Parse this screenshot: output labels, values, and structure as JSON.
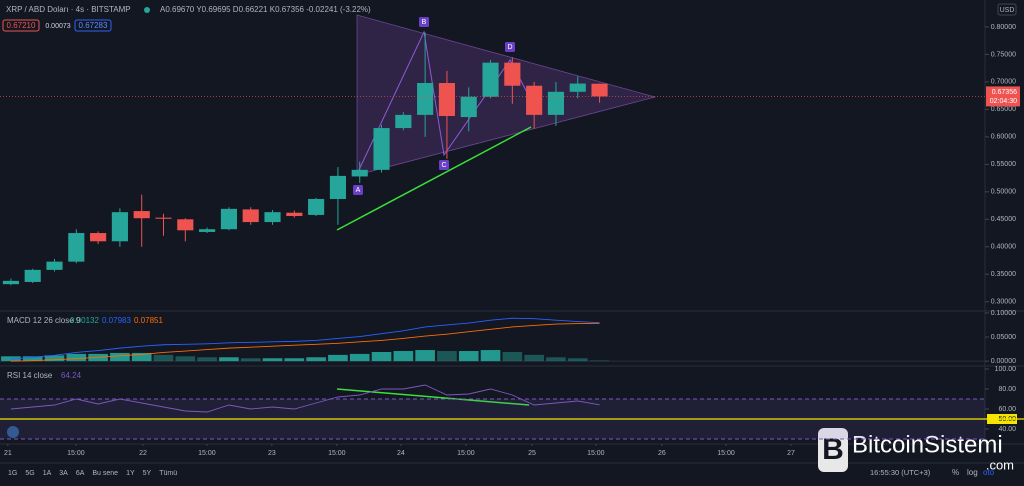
{
  "header": {
    "symbol": "XRP / ABD Doları · 4s · BITSTAMP",
    "ohlc": "A0.69670 Y0.69695 D0.66221 K0.67356 -0.02241 (-3.22%)",
    "sell": "0.67210",
    "spread": "0.00073",
    "buy": "0.67283",
    "currency": "USD"
  },
  "chart_data": [
    {
      "type": "candlestick",
      "x": [
        0,
        1,
        2,
        3,
        4,
        5,
        6,
        7,
        8,
        9,
        10,
        11,
        12,
        13,
        14,
        15,
        16,
        17,
        18,
        19,
        20,
        21,
        22,
        23,
        24,
        25,
        26,
        27
      ],
      "open": [
        0.332,
        0.336,
        0.358,
        0.373,
        0.425,
        0.41,
        0.465,
        0.453,
        0.45,
        0.427,
        0.432,
        0.468,
        0.445,
        0.462,
        0.458,
        0.487,
        0.528,
        0.54,
        0.616,
        0.64,
        0.698,
        0.636,
        0.673,
        0.735,
        0.693,
        0.64,
        0.682,
        0.6967
      ],
      "high": [
        0.342,
        0.36,
        0.378,
        0.432,
        0.428,
        0.47,
        0.495,
        0.46,
        0.452,
        0.435,
        0.472,
        0.472,
        0.467,
        0.466,
        0.489,
        0.545,
        0.555,
        0.622,
        0.645,
        0.79,
        0.72,
        0.69,
        0.74,
        0.745,
        0.7,
        0.7,
        0.71,
        0.69695
      ],
      "low": [
        0.33,
        0.334,
        0.355,
        0.37,
        0.405,
        0.4,
        0.4,
        0.42,
        0.41,
        0.425,
        0.43,
        0.44,
        0.44,
        0.453,
        0.456,
        0.44,
        0.516,
        0.535,
        0.612,
        0.6,
        0.56,
        0.61,
        0.67,
        0.66,
        0.615,
        0.62,
        0.67,
        0.66221
      ],
      "close": [
        0.338,
        0.358,
        0.373,
        0.425,
        0.41,
        0.463,
        0.452,
        0.451,
        0.43,
        0.432,
        0.469,
        0.445,
        0.463,
        0.456,
        0.487,
        0.529,
        0.54,
        0.616,
        0.64,
        0.698,
        0.638,
        0.673,
        0.735,
        0.693,
        0.64,
        0.682,
        0.697,
        0.67356
      ],
      "up_color": "#26a69a",
      "down_color": "#ef5350",
      "xlim": [
        -0.5,
        44.68
      ],
      "ylim": [
        0.285,
        0.849
      ],
      "xticks": [
        {
          "value": -0.14,
          "label": "21"
        },
        {
          "value": 2.98,
          "label": "15:00"
        },
        {
          "value": 6.06,
          "label": "22"
        },
        {
          "value": 8.99,
          "label": "15:00"
        },
        {
          "value": 11.97,
          "label": "23"
        },
        {
          "value": 14.95,
          "label": "15:00"
        },
        {
          "value": 17.89,
          "label": "24"
        },
        {
          "value": 20.87,
          "label": "15:00"
        },
        {
          "value": 23.9,
          "label": "25"
        },
        {
          "value": 26.83,
          "label": "15:00"
        },
        {
          "value": 29.86,
          "label": "26"
        },
        {
          "value": 32.8,
          "label": "15:00"
        },
        {
          "value": 35.78,
          "label": "27"
        }
      ],
      "yticks": [
        {
          "value": 0.3,
          "label": "0.30000"
        },
        {
          "value": 0.35,
          "label": "0.35000"
        },
        {
          "value": 0.4,
          "label": "0.40000"
        },
        {
          "value": 0.45,
          "label": "0.45000"
        },
        {
          "value": 0.5,
          "label": "0.50000"
        },
        {
          "value": 0.55,
          "label": "0.55000"
        },
        {
          "value": 0.6,
          "label": "0.60000"
        },
        {
          "value": 0.65,
          "label": "0.65000"
        },
        {
          "value": 0.7,
          "label": "0.70000"
        },
        {
          "value": 0.75,
          "label": "0.75000"
        },
        {
          "value": 0.8,
          "label": "0.80000"
        }
      ],
      "countdown": "02:04:30",
      "pattern_labels": [
        "A",
        "B",
        "C",
        "D"
      ]
    },
    {
      "type": "macd",
      "title": "MACD 12 26 close 9",
      "series": [
        {
          "name": "histogram",
          "color": "#26a69a",
          "values": [
            0.01,
            0.01,
            0.012,
            0.015,
            0.015,
            0.017,
            0.017,
            0.013,
            0.01,
            0.008,
            0.008,
            0.006,
            0.006,
            0.006,
            0.008,
            0.013,
            0.015,
            0.019,
            0.021,
            0.023,
            0.021,
            0.021,
            0.023,
            0.019,
            0.013,
            0.008,
            0.006,
            0.00132
          ]
        },
        {
          "name": "macd",
          "color": "#2962ff",
          "values": [
            0.004,
            0.008,
            0.012,
            0.018,
            0.022,
            0.027,
            0.031,
            0.034,
            0.035,
            0.036,
            0.038,
            0.039,
            0.04,
            0.041,
            0.043,
            0.047,
            0.051,
            0.057,
            0.063,
            0.071,
            0.075,
            0.079,
            0.085,
            0.089,
            0.088,
            0.085,
            0.082,
            0.07983
          ]
        },
        {
          "name": "signal",
          "color": "#ff6d00",
          "values": [
            0,
            0.001,
            0.003,
            0.005,
            0.008,
            0.011,
            0.014,
            0.018,
            0.021,
            0.024,
            0.027,
            0.029,
            0.031,
            0.033,
            0.035,
            0.037,
            0.04,
            0.043,
            0.047,
            0.052,
            0.056,
            0.061,
            0.066,
            0.071,
            0.074,
            0.077,
            0.078,
            0.07851
          ]
        }
      ],
      "ylim": [
        -0.008,
        0.104
      ],
      "yticks": [
        {
          "value": 0,
          "label": "0.00000"
        },
        {
          "value": 0.05,
          "label": "0.05000"
        },
        {
          "value": 0.1,
          "label": "0.10000"
        }
      ]
    },
    {
      "type": "rsi",
      "title": "RSI 14 close",
      "series": [
        {
          "name": "rsi",
          "color": "#7e57c2",
          "values": [
            60,
            62,
            64,
            70,
            65,
            70,
            66,
            62,
            58,
            57,
            64,
            60,
            62,
            60,
            66,
            72,
            74,
            80,
            80,
            84,
            74,
            75,
            80,
            74,
            64,
            66,
            68,
            64.24
          ]
        }
      ],
      "ylim": [
        28,
        103
      ],
      "bands": [
        30,
        70
      ],
      "midline": 50,
      "midline_color": "#f5e400",
      "yticks": [
        {
          "value": 40,
          "label": "40.00"
        },
        {
          "value": 50,
          "label": "50.00"
        },
        {
          "value": 60,
          "label": "60.00"
        },
        {
          "value": 80,
          "label": "80.00"
        },
        {
          "value": 100,
          "label": "100.00"
        }
      ]
    }
  ],
  "toolbar": {
    "ranges": [
      "1G",
      "5G",
      "1A",
      "3A",
      "6A",
      "Bu sene",
      "1Y",
      "5Y",
      "Tümü"
    ],
    "clock": "16:55:30 (UTC+3)",
    "percent": "%",
    "log": "log",
    "auto": "oto"
  },
  "watermark": {
    "brand": "BitcoinSistemi",
    "domain": ".com"
  }
}
